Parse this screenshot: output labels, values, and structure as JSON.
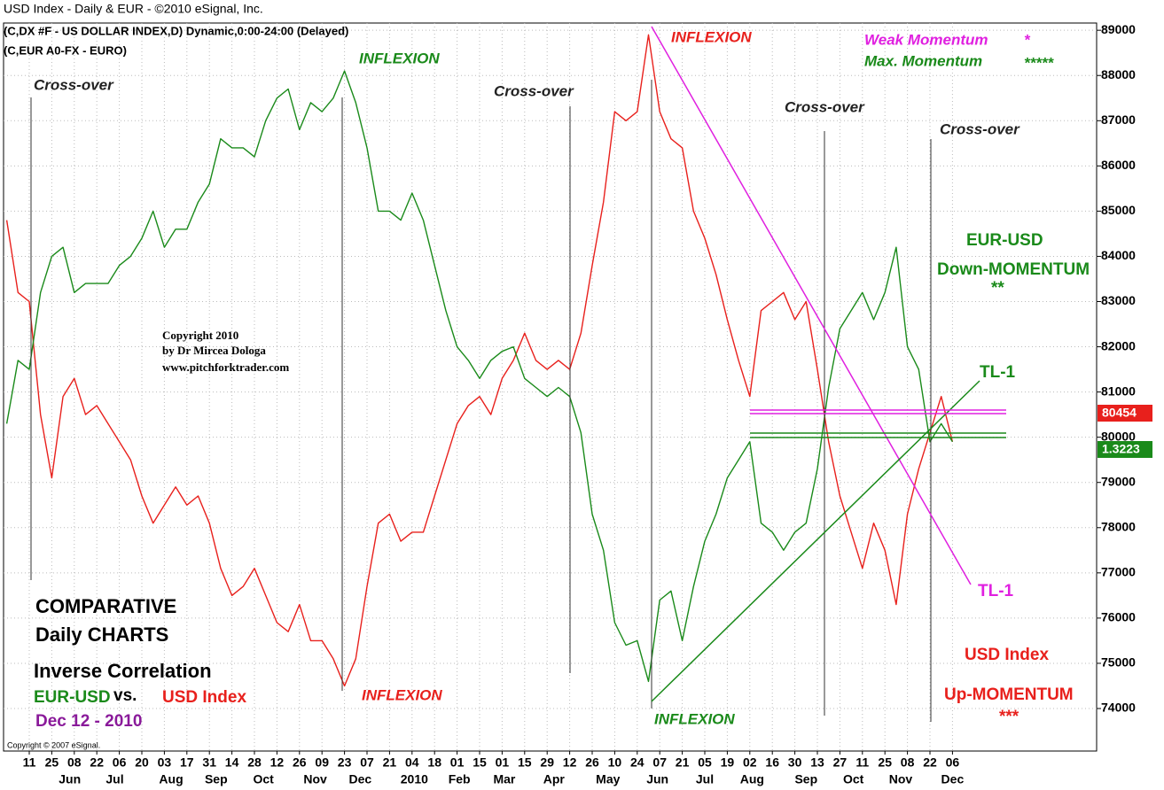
{
  "chart_data": {
    "type": "line",
    "title": "USD Index - Daily & EUR - ©2010 eSignal, Inc.",
    "subtitle": [
      "(C,DX #F - US DOLLAR INDEX,D) Dynamic,0:00-24:00 (Delayed)",
      "(C,EUR A0-FX - EURO)"
    ],
    "x_tick_labels": [
      "11",
      "25",
      "08",
      "22",
      "06",
      "20",
      "03",
      "17",
      "31",
      "14",
      "28",
      "12",
      "26",
      "09",
      "23",
      "07",
      "21",
      "04",
      "18",
      "01",
      "15",
      "01",
      "15",
      "29",
      "12",
      "26",
      "10",
      "24",
      "07",
      "21",
      "05",
      "19",
      "02",
      "16",
      "30",
      "13",
      "27",
      "11",
      "25",
      "08",
      "22",
      "06"
    ],
    "x_month_labels": [
      "Jun",
      "Jul",
      "Aug",
      "Sep",
      "Oct",
      "Nov",
      "Dec",
      "2010",
      "Feb",
      "Mar",
      "Apr",
      "May",
      "Jun",
      "Jul",
      "Aug",
      "Sep",
      "Oct",
      "Nov",
      "Dec"
    ],
    "ylim": [
      73060,
      89160
    ],
    "yticks": [
      74000,
      75000,
      76000,
      77000,
      78000,
      79000,
      80000,
      81000,
      82000,
      83000,
      84000,
      85000,
      86000,
      87000,
      88000,
      89000
    ],
    "grid": true,
    "series": [
      {
        "name": "USD Index",
        "color": "#e8201c",
        "values": [
          84800,
          83200,
          83000,
          80500,
          79100,
          80900,
          81300,
          80500,
          80700,
          80300,
          79900,
          79500,
          78700,
          78100,
          78500,
          78900,
          78500,
          78700,
          78100,
          77100,
          76500,
          76700,
          77100,
          76500,
          75900,
          75700,
          76300,
          75500,
          75500,
          75100,
          74500,
          75100,
          76700,
          78100,
          78300,
          77700,
          77900,
          77900,
          78700,
          79500,
          80300,
          80700,
          80900,
          80500,
          81300,
          81700,
          82300,
          81700,
          81500,
          81700,
          81500,
          82300,
          83800,
          85200,
          87200,
          87000,
          87200,
          88900,
          87200,
          86600,
          86400,
          85000,
          84400,
          83600,
          82600,
          81700,
          80900,
          82800,
          83000,
          83200,
          82600,
          83000,
          81500,
          79900,
          78700,
          77900,
          77100,
          78100,
          77500,
          76300,
          78300,
          79300,
          80100,
          80900,
          79900
        ]
      },
      {
        "name": "EUR-USD",
        "color": "#1a8a1a",
        "values": [
          80300,
          81700,
          81500,
          83200,
          84000,
          84200,
          83200,
          83400,
          83400,
          83400,
          83800,
          84000,
          84400,
          85000,
          84200,
          84600,
          84600,
          85200,
          85600,
          86600,
          86400,
          86400,
          86200,
          87000,
          87500,
          87700,
          86800,
          87400,
          87200,
          87500,
          88100,
          87400,
          86400,
          85000,
          85000,
          84800,
          85400,
          84800,
          83800,
          82800,
          82000,
          81700,
          81300,
          81700,
          81900,
          82000,
          81300,
          81100,
          80900,
          81100,
          80900,
          80100,
          78300,
          77500,
          75900,
          75400,
          75500,
          74600,
          76400,
          76600,
          75500,
          76700,
          77700,
          78300,
          79100,
          79500,
          79900,
          78100,
          77900,
          77500,
          77900,
          78100,
          79300,
          81100,
          82400,
          82800,
          83200,
          82600,
          83200,
          84200,
          82000,
          81500,
          79900,
          80300,
          79900
        ]
      }
    ],
    "price_labels": [
      "80454",
      "1.3223"
    ],
    "annotations": [
      "Cross-over",
      "INFLEXION",
      "Cross-over",
      "INFLEXION",
      "Weak Momentum",
      "*",
      "Max. Momentum",
      "*****",
      "Cross-over",
      "Cross-over",
      "EUR-USD",
      "Down-MOMENTUM",
      "**",
      "TL-1",
      "TL-1",
      "USD Index",
      "Up-MOMENTUM",
      "***",
      "Copyright 2010",
      "by Dr Mircea Dologa",
      "www.pitchforktrader.com",
      "COMPARATIVE",
      "Daily CHARTS",
      "Inverse Correlation",
      "EUR-USD",
      "vs.",
      "USD Index",
      "Dec 12 - 2010",
      "INFLEXION",
      "INFLEXION",
      "Copyright © 2007 eSignal."
    ]
  }
}
